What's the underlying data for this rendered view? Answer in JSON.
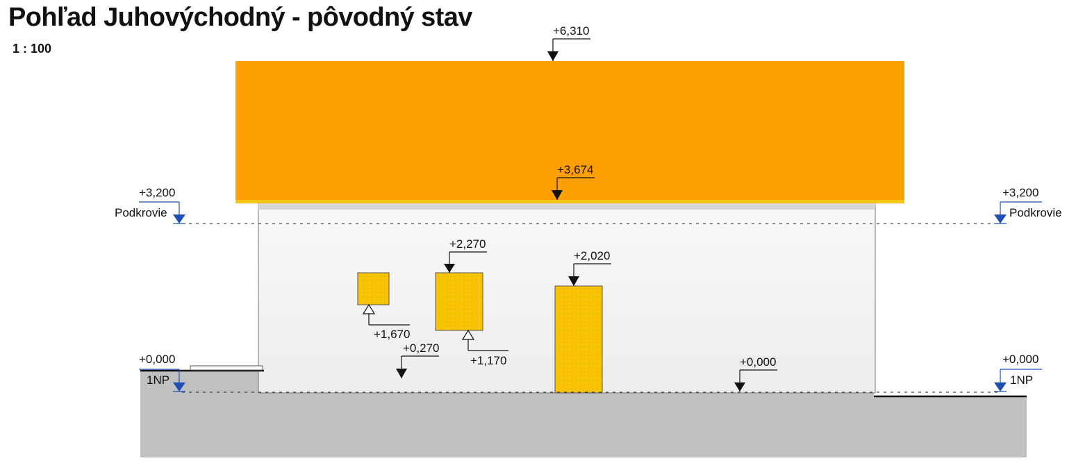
{
  "title": "Pohľad Juhovýchodný - pôvodný stav",
  "scale": "1 : 100",
  "levels": {
    "top_ridge": "+6,310",
    "eave": "+3,674",
    "podkrovie_left": {
      "value": "+3,200",
      "name": "Podkrovie"
    },
    "podkrovie_right": {
      "value": "+3,200",
      "name": "Podkrovie"
    },
    "np_left": {
      "value": "+0,000",
      "name": "1NP"
    },
    "np_right": {
      "value": "+0,000",
      "name": "1NP"
    },
    "window1_bottom": "+1,670",
    "window2_top": "+2,270",
    "window2_bottom": "+1,170",
    "door_top": "+2,020",
    "terrace": "+0,270",
    "floor_mid": "+0,000"
  },
  "colors": {
    "roof": "#FD9E03",
    "roof_edge": "#F5C518",
    "wall": "#F2F2F2",
    "opening": "#F8C300",
    "ground": "#C0C0C0",
    "level_marker": "#1E4FB4"
  }
}
